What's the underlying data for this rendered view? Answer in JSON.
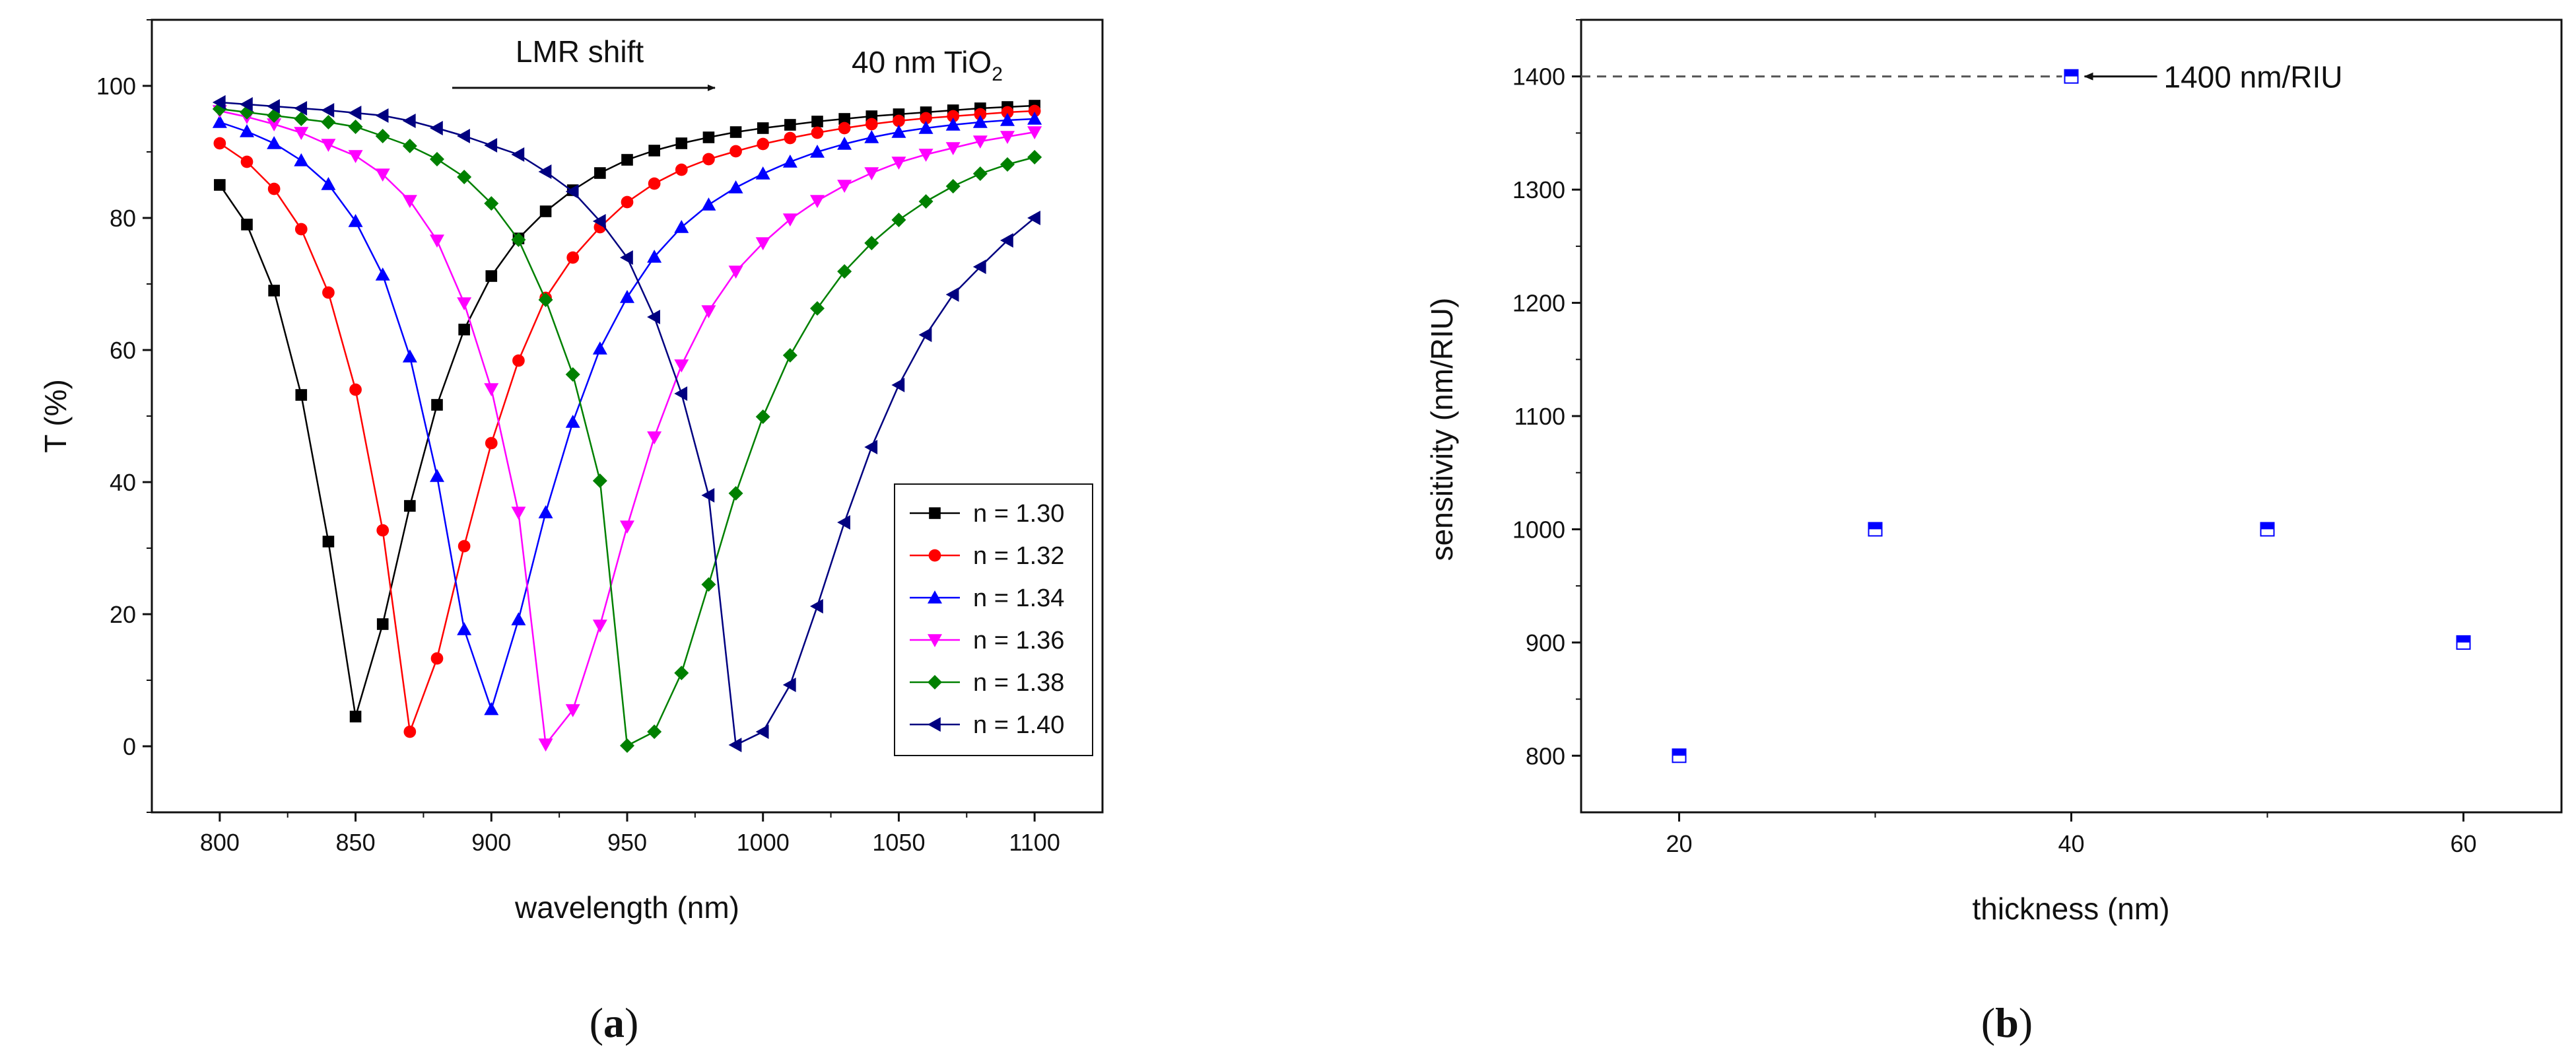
{
  "colors": {
    "n130": "#000000",
    "n132": "#ff0000",
    "n134": "#0000ff",
    "n136": "#ff00ff",
    "n138": "#008000",
    "n140": "#000080",
    "marker_b": "#0000ff"
  },
  "panel_a_label": {
    "open": "(",
    "letter": "a",
    "close": ")"
  },
  "panel_b_label": {
    "open": "(",
    "letter": "b",
    "close": ")"
  },
  "chart_data": [
    {
      "type": "line",
      "title": "",
      "xlabel": "wavelength (nm)",
      "ylabel": "T (%)",
      "xlim": [
        775,
        1125
      ],
      "ylim": [
        -10,
        110
      ],
      "xticks": [
        800,
        850,
        900,
        950,
        1000,
        1050,
        1100
      ],
      "yticks": [
        0,
        20,
        40,
        60,
        80,
        100
      ],
      "grid": false,
      "legend_position": "bottom-right",
      "annotations": {
        "shift_text": "LMR shift",
        "material_prefix": "40 nm TiO",
        "material_sub": "2"
      },
      "x": [
        800,
        810,
        820,
        830,
        840,
        850,
        860,
        870,
        880,
        890,
        900,
        910,
        920,
        930,
        940,
        950,
        960,
        970,
        980,
        990,
        1000,
        1010,
        1020,
        1030,
        1040,
        1050,
        1060,
        1070,
        1080,
        1090,
        1100
      ],
      "series": [
        {
          "name": "n = 1.30",
          "marker": "square",
          "color_key": "n130",
          "values": [
            85.0,
            79.0,
            69.0,
            53.2,
            31.0,
            4.5,
            18.5,
            36.4,
            51.7,
            63.1,
            71.2,
            76.9,
            81.0,
            84.2,
            86.8,
            88.8,
            90.2,
            91.3,
            92.2,
            93.0,
            93.6,
            94.1,
            94.6,
            95.0,
            95.4,
            95.7,
            96.0,
            96.3,
            96.6,
            96.8,
            97.0
          ]
        },
        {
          "name": "n = 1.32",
          "marker": "circle",
          "color_key": "n132",
          "values": [
            91.3,
            88.5,
            84.4,
            78.3,
            68.7,
            54.0,
            32.7,
            2.2,
            13.3,
            30.3,
            45.9,
            58.4,
            67.9,
            74.0,
            78.6,
            82.4,
            85.2,
            87.3,
            88.9,
            90.1,
            91.2,
            92.1,
            92.9,
            93.6,
            94.2,
            94.7,
            95.1,
            95.4,
            95.7,
            96.0,
            96.2
          ]
        },
        {
          "name": "n = 1.34",
          "marker": "triangle-up",
          "color_key": "n134",
          "values": [
            94.5,
            93.1,
            91.3,
            88.7,
            85.1,
            79.5,
            71.4,
            59.0,
            40.9,
            17.7,
            5.6,
            19.2,
            35.4,
            49.1,
            60.2,
            68.0,
            74.1,
            78.6,
            82.0,
            84.6,
            86.7,
            88.5,
            90.0,
            91.2,
            92.2,
            93.0,
            93.6,
            94.1,
            94.5,
            94.8,
            95.0
          ]
        },
        {
          "name": "n = 1.36",
          "marker": "triangle-down",
          "color_key": "n136",
          "values": [
            96.2,
            95.3,
            94.2,
            92.9,
            91.1,
            89.4,
            86.6,
            82.6,
            76.6,
            67.1,
            54.1,
            35.4,
            0.3,
            5.5,
            18.3,
            33.3,
            46.8,
            57.7,
            65.9,
            71.9,
            76.2,
            79.8,
            82.6,
            84.9,
            86.8,
            88.4,
            89.6,
            90.6,
            91.6,
            92.3,
            93.0
          ]
        },
        {
          "name": "n = 1.38",
          "marker": "diamond",
          "color_key": "n138",
          "values": [
            96.5,
            96.0,
            95.5,
            95.0,
            94.5,
            93.8,
            92.4,
            90.9,
            88.9,
            86.2,
            82.2,
            76.7,
            67.6,
            56.3,
            40.2,
            0.1,
            2.2,
            11.1,
            24.5,
            38.3,
            49.9,
            59.2,
            66.3,
            71.9,
            76.2,
            79.7,
            82.5,
            84.8,
            86.7,
            88.1,
            89.2
          ]
        },
        {
          "name": "n = 1.40",
          "marker": "triangle-left",
          "color_key": "n140",
          "values": [
            97.5,
            97.2,
            96.9,
            96.6,
            96.3,
            95.9,
            95.5,
            94.7,
            93.6,
            92.4,
            91.0,
            89.6,
            87.0,
            84.0,
            79.5,
            74.0,
            65.0,
            53.4,
            38.0,
            0.2,
            2.2,
            9.3,
            21.2,
            33.9,
            45.3,
            54.7,
            62.3,
            68.4,
            72.6,
            76.6,
            80.0
          ]
        }
      ]
    },
    {
      "type": "scatter",
      "title": "",
      "xlabel": "thickness (nm)",
      "ylabel": "sensitivity (nm/RIU)",
      "xlim": [
        15,
        65
      ],
      "ylim": [
        750,
        1450
      ],
      "xticks": [
        20,
        40,
        60
      ],
      "xticks_minor": [
        30,
        50
      ],
      "yticks": [
        800,
        900,
        1000,
        1100,
        1200,
        1300,
        1400
      ],
      "grid": false,
      "reference_line": {
        "y": 1400,
        "style": "dashed"
      },
      "annotation_text": "1400 nm/RIU",
      "x": [
        20,
        30,
        40,
        50,
        60
      ],
      "values": [
        800,
        1000,
        1400,
        1000,
        900
      ]
    }
  ]
}
